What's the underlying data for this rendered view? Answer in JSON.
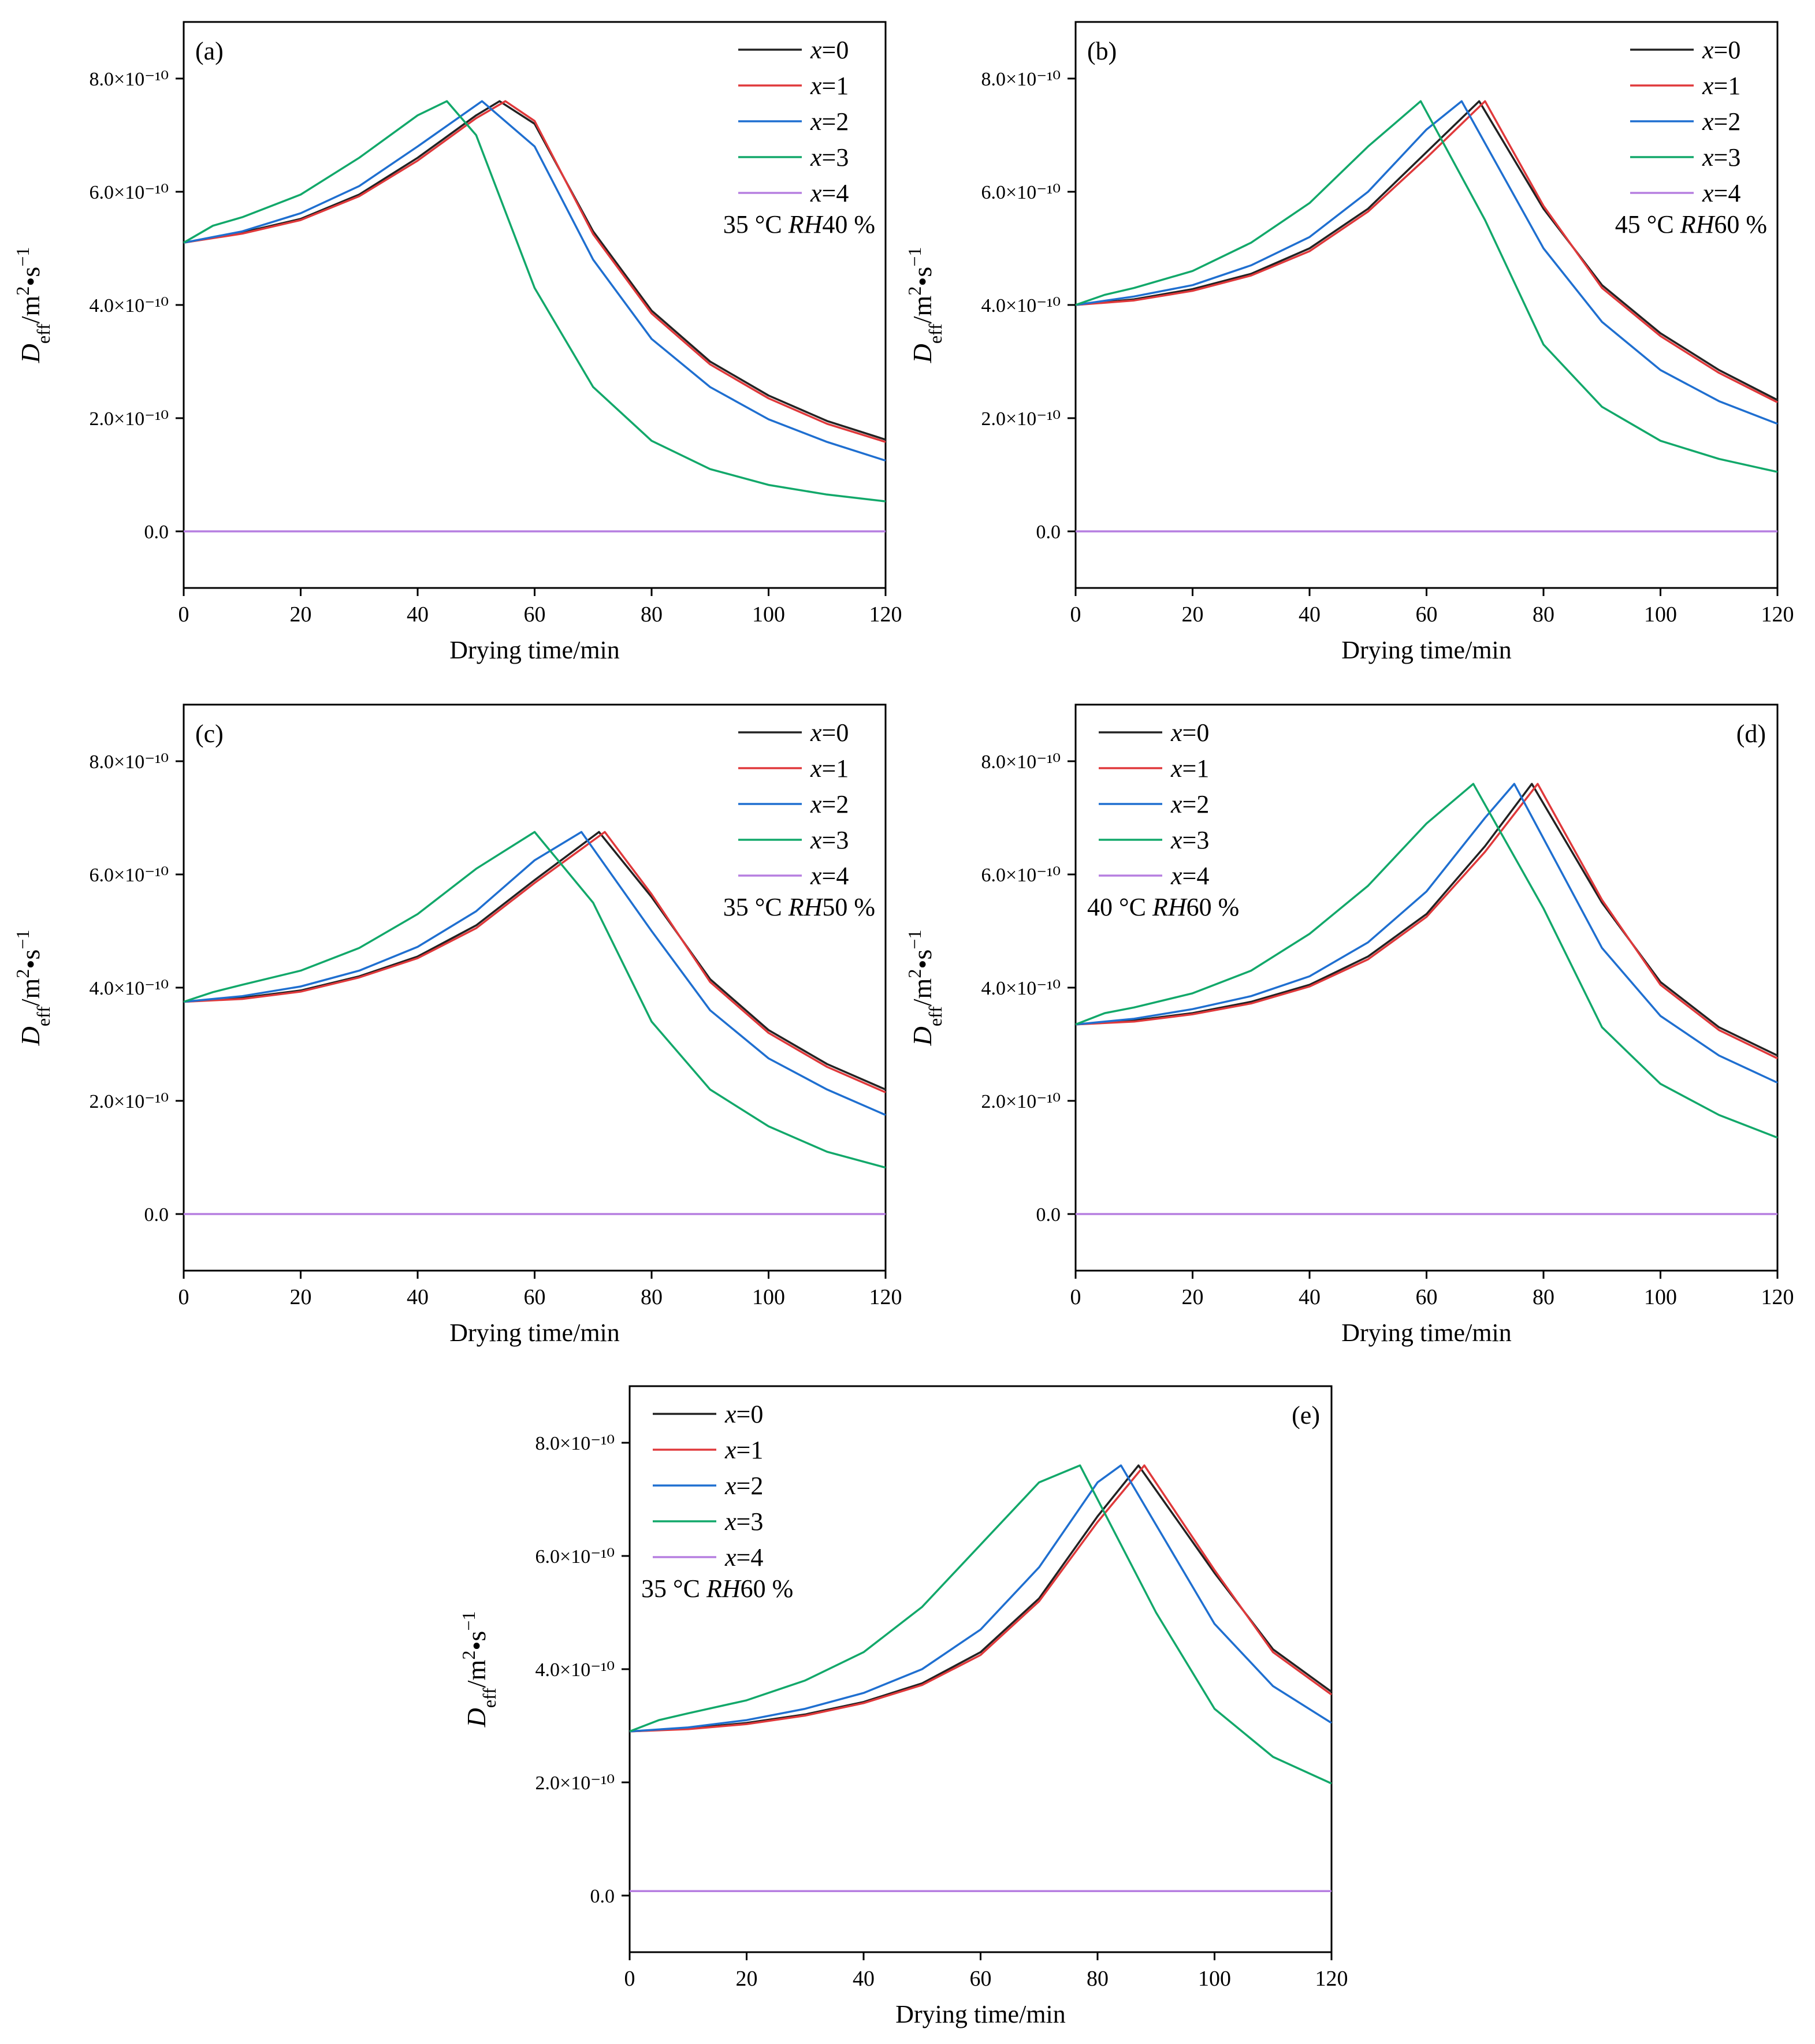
{
  "colors": {
    "x=0": "#222222",
    "x=1": "#e0393b",
    "x=2": "#1f6fd0",
    "x=3": "#12a86a",
    "x=4": "#b67ee0"
  },
  "chart_data": [
    {
      "type": "line",
      "panel_label": "(a)",
      "condition": "35 °C RH40 %",
      "condition_parts": [
        "35 °C ",
        "RH",
        "40 %"
      ],
      "xlabel": "Drying time/min",
      "ylabel": "Deff/m2•s−1",
      "xlim": [
        0,
        120
      ],
      "ylim": [
        -1e-10,
        9e-10
      ],
      "xticks": [
        0,
        20,
        40,
        60,
        80,
        100,
        120
      ],
      "yticks": [
        0,
        2e-10,
        4e-10,
        6e-10,
        8e-10
      ],
      "ytick_labels": [
        "0.0",
        "2.0×10⁻¹⁰",
        "4.0×10⁻¹⁰",
        "6.0×10⁻¹⁰",
        "8.0×10⁻¹⁰"
      ],
      "legend_position": "top-right",
      "series": [
        {
          "name": "x=0",
          "x": [
            0,
            10,
            20,
            30,
            40,
            50,
            54,
            60,
            70,
            80,
            90,
            100,
            110,
            120
          ],
          "y": [
            5.1e-10,
            5.28e-10,
            5.52e-10,
            5.95e-10,
            6.6e-10,
            7.35e-10,
            7.6e-10,
            7.2e-10,
            5.3e-10,
            3.9e-10,
            3e-10,
            2.4e-10,
            1.95e-10,
            1.62e-10
          ]
        },
        {
          "name": "x=1",
          "x": [
            0,
            10,
            20,
            30,
            40,
            50,
            55,
            60,
            70,
            80,
            90,
            100,
            110,
            120
          ],
          "y": [
            5.1e-10,
            5.26e-10,
            5.5e-10,
            5.92e-10,
            6.55e-10,
            7.3e-10,
            7.6e-10,
            7.25e-10,
            5.25e-10,
            3.85e-10,
            2.95e-10,
            2.35e-10,
            1.9e-10,
            1.58e-10
          ]
        },
        {
          "name": "x=2",
          "x": [
            0,
            10,
            20,
            30,
            40,
            51,
            60,
            70,
            80,
            90,
            100,
            110,
            120
          ],
          "y": [
            5.1e-10,
            5.3e-10,
            5.62e-10,
            6.1e-10,
            6.8e-10,
            7.6e-10,
            6.8e-10,
            4.8e-10,
            3.4e-10,
            2.55e-10,
            1.98e-10,
            1.58e-10,
            1.25e-10
          ]
        },
        {
          "name": "x=3",
          "x": [
            0,
            5,
            10,
            20,
            30,
            40,
            45,
            50,
            60,
            70,
            80,
            90,
            100,
            110,
            120
          ],
          "y": [
            5.1e-10,
            5.4e-10,
            5.55e-10,
            5.95e-10,
            6.6e-10,
            7.35e-10,
            7.6e-10,
            7e-10,
            4.3e-10,
            2.55e-10,
            1.6e-10,
            1.1e-10,
            8.2e-11,
            6.5e-11,
            5.3e-11
          ]
        },
        {
          "name": "x=4",
          "x": [
            0,
            120
          ],
          "y": [
            0,
            0
          ]
        }
      ]
    },
    {
      "type": "line",
      "panel_label": "(b)",
      "condition": "45 °C RH60 %",
      "condition_parts": [
        "45 °C ",
        "RH",
        "60 %"
      ],
      "xlabel": "Drying time/min",
      "ylabel": "Deff/m2•s−1",
      "xlim": [
        0,
        120
      ],
      "ylim": [
        -1e-10,
        9e-10
      ],
      "xticks": [
        0,
        20,
        40,
        60,
        80,
        100,
        120
      ],
      "yticks": [
        0,
        2e-10,
        4e-10,
        6e-10,
        8e-10
      ],
      "ytick_labels": [
        "0.0",
        "2.0×10⁻¹⁰",
        "4.0×10⁻¹⁰",
        "6.0×10⁻¹⁰",
        "8.0×10⁻¹⁰"
      ],
      "legend_position": "top-right",
      "series": [
        {
          "name": "x=0",
          "x": [
            0,
            10,
            20,
            30,
            40,
            50,
            60,
            69,
            80,
            90,
            100,
            110,
            120
          ],
          "y": [
            4e-10,
            4.1e-10,
            4.28e-10,
            4.55e-10,
            5e-10,
            5.7e-10,
            6.7e-10,
            7.6e-10,
            5.7e-10,
            4.35e-10,
            3.5e-10,
            2.85e-10,
            2.32e-10
          ]
        },
        {
          "name": "x=1",
          "x": [
            0,
            10,
            20,
            30,
            40,
            50,
            60,
            70,
            80,
            90,
            100,
            110,
            120
          ],
          "y": [
            4e-10,
            4.08e-10,
            4.25e-10,
            4.52e-10,
            4.95e-10,
            5.65e-10,
            6.6e-10,
            7.6e-10,
            5.75e-10,
            4.3e-10,
            3.45e-10,
            2.8e-10,
            2.28e-10
          ]
        },
        {
          "name": "x=2",
          "x": [
            0,
            10,
            20,
            30,
            40,
            50,
            60,
            66,
            80,
            90,
            100,
            110,
            120
          ],
          "y": [
            4e-10,
            4.15e-10,
            4.35e-10,
            4.7e-10,
            5.2e-10,
            6e-10,
            7.1e-10,
            7.6e-10,
            5e-10,
            3.7e-10,
            2.85e-10,
            2.3e-10,
            1.9e-10
          ]
        },
        {
          "name": "x=3",
          "x": [
            0,
            5,
            10,
            20,
            30,
            40,
            50,
            59,
            70,
            80,
            90,
            100,
            110,
            120
          ],
          "y": [
            4e-10,
            4.18e-10,
            4.3e-10,
            4.6e-10,
            5.1e-10,
            5.8e-10,
            6.8e-10,
            7.6e-10,
            5.5e-10,
            3.3e-10,
            2.2e-10,
            1.6e-10,
            1.28e-10,
            1.05e-10
          ]
        },
        {
          "name": "x=4",
          "x": [
            0,
            120
          ],
          "y": [
            0,
            0
          ]
        }
      ]
    },
    {
      "type": "line",
      "panel_label": "(c)",
      "condition": "35 °C RH50 %",
      "condition_parts": [
        "35 °C ",
        "RH",
        "50 %"
      ],
      "xlabel": "Drying time/min",
      "ylabel": "Deff/m2•s−1",
      "xlim": [
        0,
        120
      ],
      "ylim": [
        -1e-10,
        9e-10
      ],
      "xticks": [
        0,
        20,
        40,
        60,
        80,
        100,
        120
      ],
      "yticks": [
        0,
        2e-10,
        4e-10,
        6e-10,
        8e-10
      ],
      "ytick_labels": [
        "0.0",
        "2.0×10⁻¹⁰",
        "4.0×10⁻¹⁰",
        "6.0×10⁻¹⁰",
        "8.0×10⁻¹⁰"
      ],
      "legend_position": "top-right",
      "series": [
        {
          "name": "x=0",
          "x": [
            0,
            10,
            20,
            30,
            40,
            50,
            60,
            71,
            80,
            90,
            100,
            110,
            120
          ],
          "y": [
            3.75e-10,
            3.82e-10,
            3.95e-10,
            4.2e-10,
            4.55e-10,
            5.1e-10,
            5.9e-10,
            6.75e-10,
            5.6e-10,
            4.15e-10,
            3.25e-10,
            2.65e-10,
            2.2e-10
          ]
        },
        {
          "name": "x=1",
          "x": [
            0,
            10,
            20,
            30,
            40,
            50,
            60,
            72,
            80,
            90,
            100,
            110,
            120
          ],
          "y": [
            3.75e-10,
            3.8e-10,
            3.93e-10,
            4.18e-10,
            4.52e-10,
            5.05e-10,
            5.85e-10,
            6.75e-10,
            5.65e-10,
            4.1e-10,
            3.2e-10,
            2.6e-10,
            2.15e-10
          ]
        },
        {
          "name": "x=2",
          "x": [
            0,
            10,
            20,
            30,
            40,
            50,
            60,
            68,
            80,
            90,
            100,
            110,
            120
          ],
          "y": [
            3.75e-10,
            3.85e-10,
            4.02e-10,
            4.3e-10,
            4.72e-10,
            5.35e-10,
            6.25e-10,
            6.75e-10,
            5e-10,
            3.6e-10,
            2.75e-10,
            2.2e-10,
            1.75e-10
          ]
        },
        {
          "name": "x=3",
          "x": [
            0,
            5,
            10,
            20,
            30,
            40,
            50,
            60,
            70,
            80,
            90,
            100,
            110,
            120
          ],
          "y": [
            3.75e-10,
            3.92e-10,
            4.05e-10,
            4.3e-10,
            4.7e-10,
            5.3e-10,
            6.1e-10,
            6.75e-10,
            5.5e-10,
            3.4e-10,
            2.2e-10,
            1.55e-10,
            1.1e-10,
            8.2e-11
          ]
        },
        {
          "name": "x=4",
          "x": [
            0,
            120
          ],
          "y": [
            0,
            0
          ]
        }
      ]
    },
    {
      "type": "line",
      "panel_label": "(d)",
      "condition": "40 °C RH60 %",
      "condition_parts": [
        "40 °C ",
        "RH",
        "60 %"
      ],
      "xlabel": "Drying time/min",
      "ylabel": "Deff/m2•s−1",
      "xlim": [
        0,
        120
      ],
      "ylim": [
        -1e-10,
        9e-10
      ],
      "xticks": [
        0,
        20,
        40,
        60,
        80,
        100,
        120
      ],
      "yticks": [
        0,
        2e-10,
        4e-10,
        6e-10,
        8e-10
      ],
      "ytick_labels": [
        "0.0",
        "2.0×10⁻¹⁰",
        "4.0×10⁻¹⁰",
        "6.0×10⁻¹⁰",
        "8.0×10⁻¹⁰"
      ],
      "legend_position": "top-left",
      "series": [
        {
          "name": "x=0",
          "x": [
            0,
            10,
            20,
            30,
            40,
            50,
            60,
            70,
            78,
            90,
            100,
            110,
            120
          ],
          "y": [
            3.35e-10,
            3.42e-10,
            3.55e-10,
            3.75e-10,
            4.05e-10,
            4.55e-10,
            5.3e-10,
            6.5e-10,
            7.6e-10,
            5.5e-10,
            4.1e-10,
            3.3e-10,
            2.8e-10
          ]
        },
        {
          "name": "x=1",
          "x": [
            0,
            10,
            20,
            30,
            40,
            50,
            60,
            70,
            79,
            90,
            100,
            110,
            120
          ],
          "y": [
            3.35e-10,
            3.4e-10,
            3.53e-10,
            3.72e-10,
            4.02e-10,
            4.5e-10,
            5.25e-10,
            6.4e-10,
            7.6e-10,
            5.55e-10,
            4.05e-10,
            3.25e-10,
            2.75e-10
          ]
        },
        {
          "name": "x=2",
          "x": [
            0,
            10,
            20,
            30,
            40,
            50,
            60,
            70,
            75,
            90,
            100,
            110,
            120
          ],
          "y": [
            3.35e-10,
            3.45e-10,
            3.62e-10,
            3.85e-10,
            4.2e-10,
            4.8e-10,
            5.7e-10,
            7e-10,
            7.6e-10,
            4.7e-10,
            3.5e-10,
            2.8e-10,
            2.32e-10
          ]
        },
        {
          "name": "x=3",
          "x": [
            0,
            5,
            10,
            20,
            30,
            40,
            50,
            60,
            68,
            80,
            90,
            100,
            110,
            120
          ],
          "y": [
            3.35e-10,
            3.55e-10,
            3.65e-10,
            3.9e-10,
            4.3e-10,
            4.95e-10,
            5.8e-10,
            6.9e-10,
            7.6e-10,
            5.4e-10,
            3.3e-10,
            2.3e-10,
            1.75e-10,
            1.35e-10
          ]
        },
        {
          "name": "x=4",
          "x": [
            0,
            120
          ],
          "y": [
            0,
            0
          ]
        }
      ]
    },
    {
      "type": "line",
      "panel_label": "(e)",
      "condition": "35 °C RH60 %",
      "condition_parts": [
        "35 °C ",
        "RH",
        "60 %"
      ],
      "xlabel": "Drying time/min",
      "ylabel": "Deff/m2•s−1",
      "xlim": [
        0,
        120
      ],
      "ylim": [
        -1e-10,
        9e-10
      ],
      "xticks": [
        0,
        20,
        40,
        60,
        80,
        100,
        120
      ],
      "yticks": [
        0,
        2e-10,
        4e-10,
        6e-10,
        8e-10
      ],
      "ytick_labels": [
        "0.0",
        "2.0×10⁻¹⁰",
        "4.0×10⁻¹⁰",
        "6.0×10⁻¹⁰",
        "8.0×10⁻¹⁰"
      ],
      "legend_position": "top-left",
      "series": [
        {
          "name": "x=0",
          "x": [
            0,
            10,
            20,
            30,
            40,
            50,
            60,
            70,
            80,
            87,
            100,
            110,
            120
          ],
          "y": [
            2.9e-10,
            2.95e-10,
            3.05e-10,
            3.2e-10,
            3.42e-10,
            3.75e-10,
            4.3e-10,
            5.25e-10,
            6.7e-10,
            7.6e-10,
            5.7e-10,
            4.35e-10,
            3.6e-10
          ]
        },
        {
          "name": "x=1",
          "x": [
            0,
            10,
            20,
            30,
            40,
            50,
            60,
            70,
            80,
            88,
            100,
            110,
            120
          ],
          "y": [
            2.9e-10,
            2.94e-10,
            3.03e-10,
            3.18e-10,
            3.4e-10,
            3.72e-10,
            4.25e-10,
            5.2e-10,
            6.6e-10,
            7.6e-10,
            5.75e-10,
            4.3e-10,
            3.55e-10
          ]
        },
        {
          "name": "x=2",
          "x": [
            0,
            10,
            20,
            30,
            40,
            50,
            60,
            70,
            80,
            84,
            100,
            110,
            120
          ],
          "y": [
            2.9e-10,
            2.97e-10,
            3.1e-10,
            3.3e-10,
            3.58e-10,
            4e-10,
            4.7e-10,
            5.8e-10,
            7.3e-10,
            7.6e-10,
            4.8e-10,
            3.7e-10,
            3.05e-10
          ]
        },
        {
          "name": "x=3",
          "x": [
            0,
            5,
            10,
            20,
            30,
            40,
            50,
            60,
            70,
            77,
            90,
            100,
            110,
            120
          ],
          "y": [
            2.9e-10,
            3.1e-10,
            3.22e-10,
            3.45e-10,
            3.8e-10,
            4.3e-10,
            5.1e-10,
            6.2e-10,
            7.3e-10,
            7.6e-10,
            5e-10,
            3.3e-10,
            2.45e-10,
            1.98e-10
          ]
        },
        {
          "name": "x=4",
          "x": [
            0,
            120
          ],
          "y": [
            8e-12,
            8e-12
          ]
        }
      ]
    }
  ]
}
